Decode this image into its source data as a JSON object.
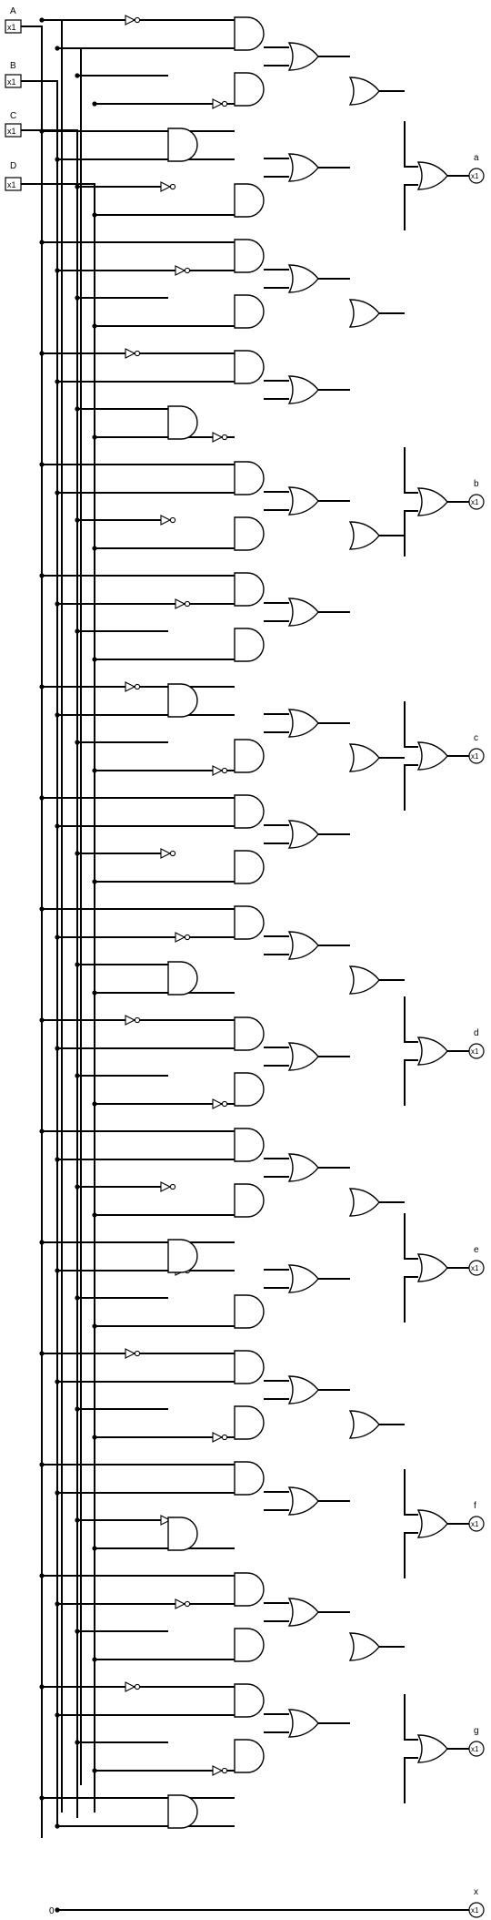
{
  "inputs": [
    {
      "name": "A",
      "value": "x1"
    },
    {
      "name": "B",
      "value": "x1"
    },
    {
      "name": "C",
      "value": "x1"
    },
    {
      "name": "D",
      "value": "x1"
    }
  ],
  "outputs": [
    {
      "name": "a",
      "value": "x1"
    },
    {
      "name": "b",
      "value": "x1"
    },
    {
      "name": "c",
      "value": "x1"
    },
    {
      "name": "d",
      "value": "x1"
    },
    {
      "name": "e",
      "value": "x1"
    },
    {
      "name": "f",
      "value": "x1"
    },
    {
      "name": "g",
      "value": "x1"
    },
    {
      "name": "x",
      "value": "x1"
    }
  ],
  "constant": {
    "label": "0"
  },
  "colors": {
    "wire": "#000000",
    "background": "#ffffff"
  }
}
